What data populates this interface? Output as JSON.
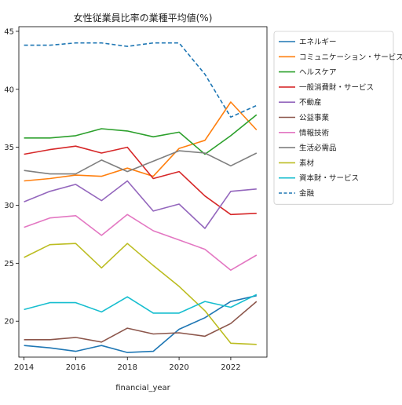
{
  "chart_data": {
    "type": "line",
    "title": "女性従業員比率の業種平均値(%)",
    "xlabel": "financial_year",
    "ylabel": "",
    "xlim": [
      2013.8,
      2023.4
    ],
    "ylim": [
      16.9,
      45.4
    ],
    "xticks": [
      2014,
      2016,
      2018,
      2020,
      2022
    ],
    "yticks": [
      20,
      25,
      30,
      35,
      40,
      45
    ],
    "x": [
      2014,
      2015,
      2016,
      2017,
      2018,
      2019,
      2020,
      2021,
      2022,
      2023
    ],
    "legend_position": "upper right outside",
    "grid": false,
    "series": [
      {
        "name": "エネルギー",
        "color": "#1f77b4",
        "dash": "solid",
        "values": [
          17.9,
          17.7,
          17.4,
          17.9,
          17.3,
          17.4,
          19.3,
          20.3,
          21.7,
          22.2
        ]
      },
      {
        "name": "コミュニケーション・サービス",
        "color": "#ff7f0e",
        "dash": "solid",
        "values": [
          32.1,
          32.3,
          32.6,
          32.5,
          33.2,
          32.5,
          34.9,
          35.6,
          38.9,
          36.5
        ]
      },
      {
        "name": "ヘルスケア",
        "color": "#2ca02c",
        "dash": "solid",
        "values": [
          35.8,
          35.8,
          36.0,
          36.6,
          36.4,
          35.9,
          36.3,
          34.4,
          36.0,
          37.8
        ]
      },
      {
        "name": "一般消費財・サービス",
        "color": "#d62728",
        "dash": "solid",
        "values": [
          34.4,
          34.8,
          35.1,
          34.5,
          35.0,
          32.3,
          32.9,
          30.8,
          29.2,
          29.3
        ]
      },
      {
        "name": "不動産",
        "color": "#9467bd",
        "dash": "solid",
        "values": [
          30.3,
          31.2,
          31.8,
          30.4,
          32.1,
          29.5,
          30.1,
          28.0,
          31.2,
          31.4
        ]
      },
      {
        "name": "公益事業",
        "color": "#8c564b",
        "dash": "solid",
        "values": [
          18.4,
          18.4,
          18.6,
          18.2,
          19.4,
          18.9,
          19.0,
          18.7,
          19.8,
          21.7
        ]
      },
      {
        "name": "情報技術",
        "color": "#e377c2",
        "dash": "solid",
        "values": [
          28.1,
          28.9,
          29.1,
          27.4,
          29.2,
          27.8,
          27.0,
          26.2,
          24.4,
          25.7
        ]
      },
      {
        "name": "生活必需品",
        "color": "#7f7f7f",
        "dash": "solid",
        "values": [
          33.0,
          32.7,
          32.7,
          33.9,
          32.9,
          33.8,
          34.7,
          34.5,
          33.4,
          34.5
        ]
      },
      {
        "name": "素材",
        "color": "#bcbd22",
        "dash": "solid",
        "values": [
          25.5,
          26.6,
          26.7,
          24.6,
          26.7,
          24.8,
          23.0,
          20.9,
          18.1,
          18.0
        ]
      },
      {
        "name": "資本財・サービス",
        "color": "#17becf",
        "dash": "solid",
        "values": [
          21.0,
          21.6,
          21.6,
          20.8,
          22.1,
          20.7,
          20.7,
          21.7,
          21.2,
          22.3
        ]
      },
      {
        "name": "金融",
        "color": "#1f77b4",
        "dash": "dashed",
        "values": [
          43.8,
          43.8,
          44.0,
          44.0,
          43.7,
          44.0,
          44.0,
          41.3,
          37.6,
          38.6
        ]
      }
    ]
  }
}
